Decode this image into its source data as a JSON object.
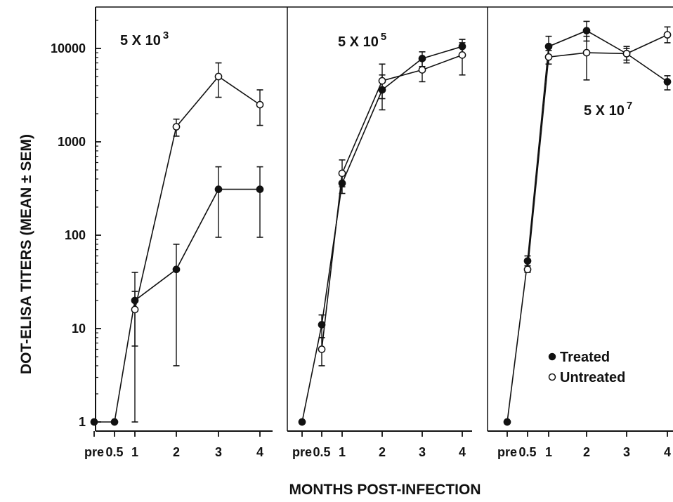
{
  "chart_data": {
    "type": "line",
    "ylabel": "DOT-ELISA TITERS (MEAN ± SEM)",
    "xlabel": "MONTHS POST-INFECTION",
    "yscale": "log",
    "ylim": [
      0.8,
      20000
    ],
    "y_ticks": [
      {
        "value": 1,
        "label": "1"
      },
      {
        "value": 10,
        "label": "10"
      },
      {
        "value": 100,
        "label": "100"
      },
      {
        "value": 1000,
        "label": "1000"
      },
      {
        "value": 10000,
        "label": "10000"
      }
    ],
    "x_ticks": [
      {
        "value": "pre",
        "label": "pre"
      },
      {
        "value": 0.5,
        "label": "0.5"
      },
      {
        "value": 1,
        "label": "1"
      },
      {
        "value": 2,
        "label": "2"
      },
      {
        "value": 3,
        "label": "3"
      },
      {
        "value": 4,
        "label": "4"
      }
    ],
    "legend": {
      "position": "bottom-right",
      "entries": [
        {
          "label": "Treated",
          "marker": "filled-circle"
        },
        {
          "label": "Untreated",
          "marker": "open-circle"
        }
      ]
    },
    "colors": {
      "line": "#111111",
      "filled_marker": "#111111",
      "open_marker": "#ffffff"
    },
    "panels": [
      {
        "label_base": "5 X 10",
        "label_exp": "3",
        "series": [
          {
            "name": "Treated",
            "marker": "filled",
            "x": [
              "pre",
              0.5,
              1,
              2,
              3,
              4
            ],
            "y": [
              1,
              1,
              20,
              43,
              310,
              310
            ],
            "err_low": [
              null,
              null,
              1,
              4,
              95,
              95
            ],
            "err_high": [
              null,
              null,
              40,
              80,
              540,
              540
            ]
          },
          {
            "name": "Untreated",
            "marker": "open",
            "x": [
              1,
              2,
              3,
              4
            ],
            "y": [
              16,
              1450,
              5000,
              2500
            ],
            "err_low": [
              6.5,
              1150,
              3000,
              1500
            ],
            "err_high": [
              25,
              1750,
              7000,
              3600
            ]
          }
        ]
      },
      {
        "label_base": "5 X 10",
        "label_exp": "5",
        "series": [
          {
            "name": "Treated",
            "marker": "filled",
            "x": [
              "pre",
              0.5,
              1,
              2,
              3,
              4
            ],
            "y": [
              1,
              11,
              360,
              3600,
              7800,
              10500
            ],
            "err_low": [
              null,
              8,
              280,
              2200,
              6400,
              8700
            ],
            "err_high": [
              null,
              14,
              450,
              5200,
              9200,
              12500
            ]
          },
          {
            "name": "Untreated",
            "marker": "open",
            "x": [
              0.5,
              1,
              2,
              3,
              4
            ],
            "y": [
              6,
              460,
              4500,
              5900,
              8500
            ],
            "err_low": [
              4,
              330,
              2900,
              4400,
              5200
            ],
            "err_high": [
              8,
              640,
              6800,
              7500,
              11500
            ]
          }
        ]
      },
      {
        "label_base": "5 X 10",
        "label_exp": "7",
        "series": [
          {
            "name": "Treated",
            "marker": "filled",
            "x": [
              "pre",
              0.5,
              1,
              2,
              3,
              4
            ],
            "y": [
              1,
              53,
              10500,
              15500,
              8800,
              4400
            ],
            "err_low": [
              null,
              47,
              8000,
              12000,
              7000,
              3600
            ],
            "err_high": [
              null,
              60,
              13500,
              19500,
              10500,
              5100
            ]
          },
          {
            "name": "Untreated",
            "marker": "open",
            "x": [
              0.5,
              1,
              2,
              3,
              4
            ],
            "y": [
              43,
              8100,
              9000,
              8800,
              14000
            ],
            "err_low": [
              40,
              6800,
              4600,
              7500,
              11500
            ],
            "err_high": [
              47,
              9500,
              13500,
              10000,
              17000
            ]
          }
        ]
      }
    ]
  }
}
